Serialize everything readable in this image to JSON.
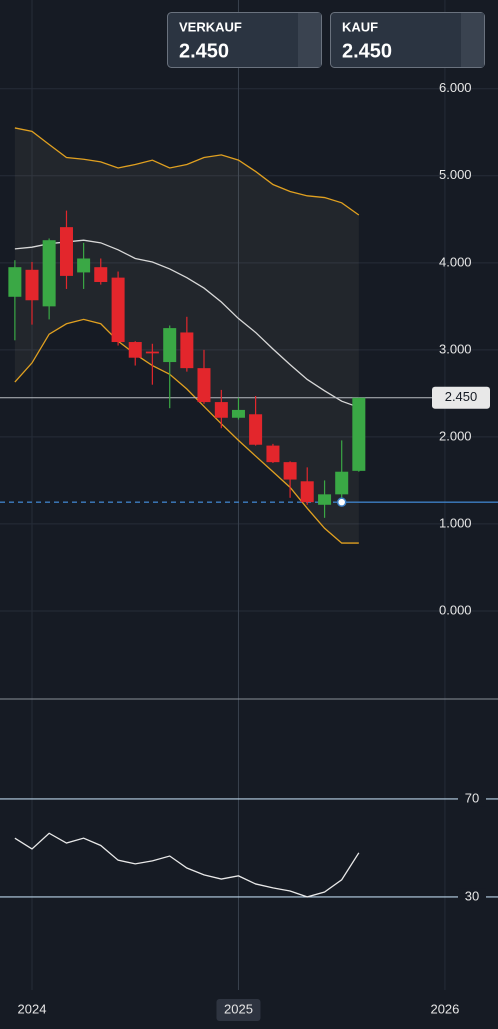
{
  "header": {
    "sell": {
      "label": "VERKAUF",
      "price": "2.450"
    },
    "buy": {
      "label": "KAUF",
      "price": "2.450"
    }
  },
  "chart_data": [
    {
      "type": "candlestick",
      "x": [
        2023.917,
        2024.0,
        2024.083,
        2024.167,
        2024.25,
        2024.333,
        2024.417,
        2024.5,
        2024.583,
        2024.667,
        2024.75,
        2024.833,
        2024.917,
        2025.0,
        2025.083,
        2025.167,
        2025.25,
        2025.333,
        2025.417,
        2025.5,
        2025.583
      ],
      "open": [
        3.61,
        3.92,
        3.5,
        4.41,
        3.89,
        3.95,
        3.83,
        3.09,
        2.98,
        2.86,
        3.2,
        2.79,
        2.4,
        2.22,
        2.26,
        1.9,
        1.71,
        1.49,
        1.22,
        1.34,
        1.61
      ],
      "high": [
        4.03,
        4.01,
        4.28,
        4.6,
        4.23,
        4.05,
        3.9,
        3.1,
        3.07,
        3.28,
        3.38,
        3.0,
        2.54,
        2.45,
        2.47,
        1.92,
        1.72,
        1.65,
        1.5,
        1.96,
        2.45
      ],
      "low": [
        3.11,
        3.29,
        3.35,
        3.7,
        3.7,
        3.75,
        3.05,
        2.82,
        2.6,
        2.33,
        2.75,
        2.38,
        2.1,
        2.2,
        1.9,
        1.7,
        1.3,
        1.22,
        1.07,
        1.3,
        1.6
      ],
      "close": [
        3.95,
        3.57,
        4.26,
        3.85,
        4.05,
        3.78,
        3.09,
        2.91,
        2.96,
        3.25,
        2.79,
        2.4,
        2.22,
        2.31,
        1.91,
        1.71,
        1.51,
        1.25,
        1.34,
        1.6,
        2.45
      ],
      "up_color": "#3aa845",
      "down_color": "#e3262c",
      "bands": {
        "upper": [
          5.55,
          5.51,
          5.36,
          5.21,
          5.19,
          5.16,
          5.09,
          5.13,
          5.18,
          5.09,
          5.13,
          5.21,
          5.24,
          5.18,
          5.05,
          4.9,
          4.82,
          4.77,
          4.75,
          4.69,
          4.55
        ],
        "middle": [
          4.16,
          4.18,
          4.22,
          4.24,
          4.26,
          4.23,
          4.15,
          4.05,
          4.01,
          3.93,
          3.83,
          3.71,
          3.55,
          3.36,
          3.2,
          3.01,
          2.83,
          2.66,
          2.53,
          2.41,
          2.34
        ],
        "lower": [
          2.63,
          2.85,
          3.18,
          3.3,
          3.35,
          3.3,
          3.1,
          2.95,
          2.82,
          2.72,
          2.55,
          2.35,
          2.15,
          1.96,
          1.78,
          1.6,
          1.42,
          1.18,
          0.95,
          0.78,
          0.78
        ],
        "band_color": "#e0a020",
        "middle_color": "#d8d8d8"
      },
      "price_line": {
        "value": 2.45,
        "label": "2.450"
      },
      "entry_line": 1.25,
      "xlim": [
        2023.845,
        2026.257
      ],
      "xticks": [
        2024,
        2025,
        2026
      ],
      "ylim": [
        -1.0,
        7.02
      ],
      "yticks": [
        {
          "value": 0,
          "label": "0.000"
        },
        {
          "value": 1,
          "label": "1.000"
        },
        {
          "value": 2,
          "label": "2.000"
        },
        {
          "value": 3,
          "label": "3.000"
        },
        {
          "value": 4,
          "label": "4.000"
        },
        {
          "value": 5,
          "label": "5.000"
        },
        {
          "value": 6,
          "label": "6.000"
        }
      ],
      "grid": true
    },
    {
      "type": "line",
      "x": [
        2023.917,
        2024.0,
        2024.083,
        2024.167,
        2024.25,
        2024.333,
        2024.417,
        2024.5,
        2024.583,
        2024.667,
        2024.75,
        2024.833,
        2024.917,
        2025.0,
        2025.083,
        2025.167,
        2025.25,
        2025.333,
        2025.417,
        2025.5,
        2025.583
      ],
      "values": [
        54,
        49.6,
        56,
        52,
        54,
        51,
        45,
        43.5,
        44.7,
        46.7,
        41.8,
        39,
        37.3,
        38.6,
        35.3,
        33.7,
        32.4,
        30,
        32,
        37,
        48
      ],
      "color": "#e8e8e8",
      "xlim": [
        2023.845,
        2026.257
      ],
      "ylim": [
        -8,
        110.4
      ],
      "yticks": [
        30,
        70
      ],
      "grid": true
    }
  ]
}
